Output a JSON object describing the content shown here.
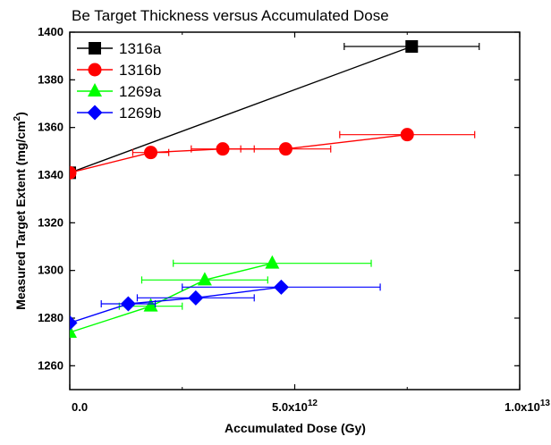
{
  "chart_data": {
    "type": "scatter",
    "title": "Be Target Thickness versus Accumulated Dose",
    "xlabel": "Accumulated Dose (Gy)",
    "ylabel_main": "Measured Target Extent (mg/cm",
    "ylabel_sup": "2",
    "ylabel_end": ")",
    "xlim": [
      0,
      10000000000000.0
    ],
    "ylim": [
      1250,
      1400
    ],
    "grid": false,
    "legend_position": "top-left",
    "x_ticks": [
      {
        "value": 0,
        "label": "0.0",
        "sup": ""
      },
      {
        "value": 5000000000000.0,
        "label": "5.0x10",
        "sup": "12"
      },
      {
        "value": 10000000000000.0,
        "label": "1.0x10",
        "sup": "13"
      }
    ],
    "y_ticks": [
      1260,
      1280,
      1300,
      1320,
      1340,
      1360,
      1380,
      1400
    ],
    "series": [
      {
        "name": "1316a",
        "color": "#000000",
        "marker": "square",
        "points": [
          {
            "x": 0,
            "y": 1341,
            "xerr": 0
          },
          {
            "x": 7600000000000.0,
            "y": 1394,
            "xerr": 1500000000000.0
          }
        ]
      },
      {
        "name": "1316b",
        "color": "#ff0000",
        "marker": "circle",
        "points": [
          {
            "x": 0,
            "y": 1341,
            "xerr": 0
          },
          {
            "x": 1800000000000.0,
            "y": 1349.5,
            "xerr": 400000000000.0
          },
          {
            "x": 3400000000000.0,
            "y": 1351,
            "xerr": 700000000000.0
          },
          {
            "x": 4800000000000.0,
            "y": 1351,
            "xerr": 1000000000000.0
          },
          {
            "x": 7500000000000.0,
            "y": 1357,
            "xerr": 1500000000000.0
          }
        ]
      },
      {
        "name": "1269a",
        "color": "#00ff00",
        "marker": "triangle",
        "points": [
          {
            "x": 0,
            "y": 1274,
            "xerr": 0
          },
          {
            "x": 1800000000000.0,
            "y": 1285,
            "xerr": 700000000000.0
          },
          {
            "x": 3000000000000.0,
            "y": 1296,
            "xerr": 1400000000000.0
          },
          {
            "x": 4500000000000.0,
            "y": 1303,
            "xerr": 2200000000000.0
          }
        ]
      },
      {
        "name": "1269b",
        "color": "#0000ff",
        "marker": "diamond",
        "points": [
          {
            "x": 0,
            "y": 1278,
            "xerr": 0
          },
          {
            "x": 1300000000000.0,
            "y": 1286,
            "xerr": 600000000000.0
          },
          {
            "x": 2800000000000.0,
            "y": 1288.5,
            "xerr": 1300000000000.0
          },
          {
            "x": 4700000000000.0,
            "y": 1293,
            "xerr": 2200000000000.0
          }
        ]
      }
    ]
  }
}
